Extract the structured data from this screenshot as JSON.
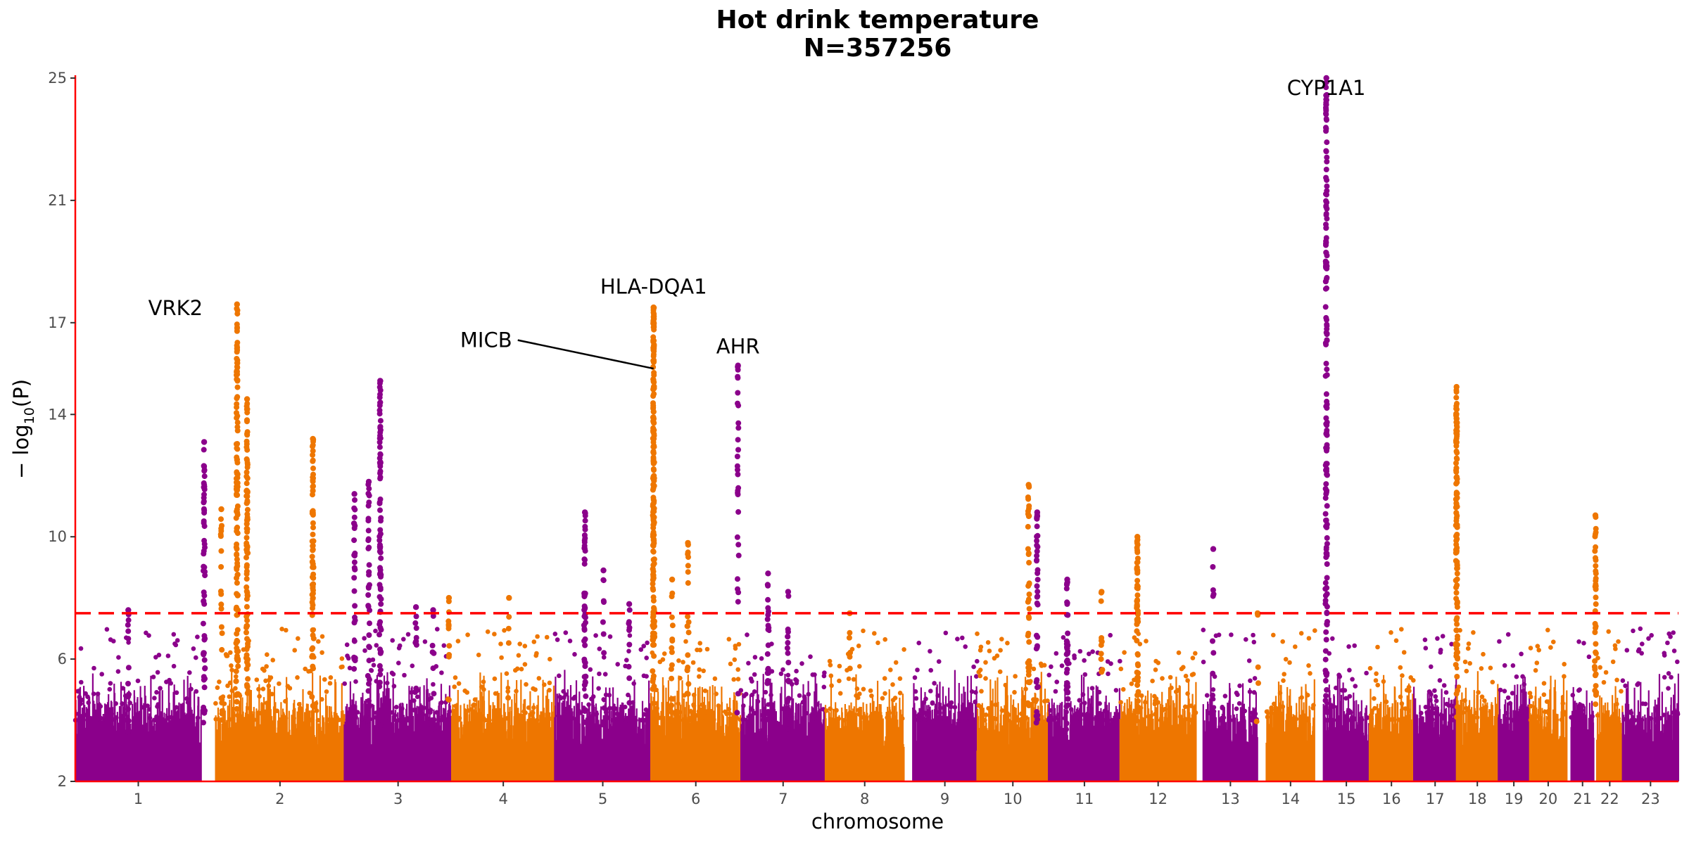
{
  "chart_data": {
    "type": "scatter",
    "subtype": "manhattan",
    "title": "Hot drink temperature",
    "subtitle": "N=357256",
    "xlabel": "chromosome",
    "ylabel": "− log10(P)",
    "ylabel_prefix": "− log",
    "ylabel_sub": "10",
    "ylabel_suffix": "(P)",
    "ylim": [
      2,
      25
    ],
    "yticks": [
      2,
      6,
      10,
      14,
      17,
      21,
      25
    ],
    "grid": false,
    "legend": "none",
    "significance_threshold": 7.5,
    "colors": {
      "odd": "#8B008B",
      "even": "#EE7600",
      "threshold": "#FF0000",
      "axis": "#FF0000"
    },
    "chromosomes": [
      {
        "label": "1",
        "start": 0,
        "end": 88
      },
      {
        "label": "2",
        "start": 98,
        "end": 188
      },
      {
        "label": "3",
        "start": 188,
        "end": 263
      },
      {
        "label": "4",
        "start": 263,
        "end": 335
      },
      {
        "label": "5",
        "start": 335,
        "end": 402
      },
      {
        "label": "6",
        "start": 402,
        "end": 465
      },
      {
        "label": "7",
        "start": 465,
        "end": 524
      },
      {
        "label": "8",
        "start": 524,
        "end": 579
      },
      {
        "label": "9",
        "start": 585,
        "end": 630
      },
      {
        "label": "10",
        "start": 630,
        "end": 680
      },
      {
        "label": "11",
        "start": 680,
        "end": 730
      },
      {
        "label": "12",
        "start": 730,
        "end": 783
      },
      {
        "label": "13",
        "start": 788,
        "end": 826
      },
      {
        "label": "14",
        "start": 832,
        "end": 866
      },
      {
        "label": "15",
        "start": 872,
        "end": 904
      },
      {
        "label": "16",
        "start": 904,
        "end": 935
      },
      {
        "label": "17",
        "start": 935,
        "end": 965
      },
      {
        "label": "18",
        "start": 965,
        "end": 994
      },
      {
        "label": "19",
        "start": 994,
        "end": 1016
      },
      {
        "label": "20",
        "start": 1016,
        "end": 1042
      },
      {
        "label": "21",
        "start": 1045,
        "end": 1061
      },
      {
        "label": "22",
        "start": 1063,
        "end": 1081
      },
      {
        "label": "23",
        "start": 1081,
        "end": 1120
      }
    ],
    "peaks": [
      {
        "chrom": "1",
        "pos": 37,
        "top": 7.6,
        "n": 12
      },
      {
        "chrom": "1",
        "pos": 90,
        "top": 13.1,
        "n": 60
      },
      {
        "chrom": "2",
        "pos": 102,
        "top": 10.9,
        "n": 20
      },
      {
        "chrom": "2",
        "pos": 113,
        "top": 17.6,
        "n": 120
      },
      {
        "chrom": "2",
        "pos": 120,
        "top": 14.5,
        "n": 90
      },
      {
        "chrom": "2",
        "pos": 166,
        "top": 13.2,
        "n": 70
      },
      {
        "chrom": "3",
        "pos": 195,
        "top": 11.4,
        "n": 30
      },
      {
        "chrom": "3",
        "pos": 205,
        "top": 11.8,
        "n": 40
      },
      {
        "chrom": "3",
        "pos": 213,
        "top": 15.1,
        "n": 80
      },
      {
        "chrom": "3",
        "pos": 238,
        "top": 7.7,
        "n": 10
      },
      {
        "chrom": "3",
        "pos": 250,
        "top": 7.6,
        "n": 10
      },
      {
        "chrom": "4",
        "pos": 261,
        "top": 8.0,
        "n": 12
      },
      {
        "chrom": "4",
        "pos": 303,
        "top": 8.0,
        "n": 4
      },
      {
        "chrom": "5",
        "pos": 356,
        "top": 10.8,
        "n": 50
      },
      {
        "chrom": "5",
        "pos": 369,
        "top": 8.9,
        "n": 10
      },
      {
        "chrom": "5",
        "pos": 387,
        "top": 7.8,
        "n": 10
      },
      {
        "chrom": "6",
        "pos": 404,
        "top": 17.5,
        "n": 200
      },
      {
        "chrom": "6",
        "pos": 417,
        "top": 8.6,
        "n": 16
      },
      {
        "chrom": "6",
        "pos": 428,
        "top": 9.8,
        "n": 20
      },
      {
        "chrom": "7",
        "pos": 463,
        "top": 15.6,
        "n": 30
      },
      {
        "chrom": "7",
        "pos": 484,
        "top": 8.8,
        "n": 20
      },
      {
        "chrom": "7",
        "pos": 498,
        "top": 8.2,
        "n": 16
      },
      {
        "chrom": "8",
        "pos": 541,
        "top": 7.5,
        "n": 6
      },
      {
        "chrom": "10",
        "pos": 666,
        "top": 11.7,
        "n": 40
      },
      {
        "chrom": "11",
        "pos": 672,
        "top": 10.8,
        "n": 40
      },
      {
        "chrom": "11",
        "pos": 693,
        "top": 8.6,
        "n": 40
      },
      {
        "chrom": "12",
        "pos": 717,
        "top": 8.2,
        "n": 10
      },
      {
        "chrom": "12",
        "pos": 742,
        "top": 10.0,
        "n": 60
      },
      {
        "chrom": "13",
        "pos": 795,
        "top": 9.6,
        "n": 8
      },
      {
        "chrom": "14",
        "pos": 826,
        "top": 7.5,
        "n": 4
      },
      {
        "chrom": "15",
        "pos": 874,
        "top": 25.0,
        "n": 160
      },
      {
        "chrom": "18",
        "pos": 965,
        "top": 14.9,
        "n": 120
      },
      {
        "chrom": "22",
        "pos": 1062,
        "top": 10.7,
        "n": 40
      }
    ],
    "annotations": [
      {
        "label": "VRK2",
        "x": 70,
        "y": 17.25
      },
      {
        "label": "MICB",
        "x": 287,
        "y": 16.2,
        "line_to": {
          "x": 404,
          "y": 15.5
        }
      },
      {
        "label": "HLA-DQA1",
        "x": 404,
        "y": 17.95
      },
      {
        "label": "AHR",
        "x": 463,
        "y": 16.0
      },
      {
        "label": "CYP1A1",
        "x": 874,
        "y": 24.45
      }
    ]
  }
}
